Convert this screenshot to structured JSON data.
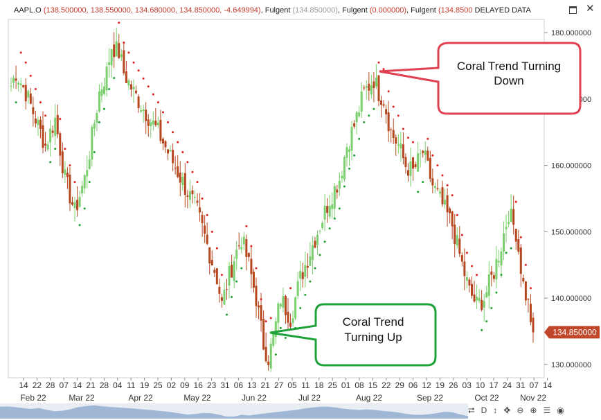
{
  "header": {
    "symbol": "AAPL.O",
    "ohlc_text": "(138.500000, 138.550000, 134.680000, 134.850000, -4.649994)",
    "ind1_name": "Fulgent",
    "ind1_values": "(134.850000)",
    "ind2_name": "Fulgent",
    "ind2_values": "(0.000000)",
    "ind3_name": "Fulgent",
    "ind3_values": "(134.8500",
    "delayed_label": "DELAYED DATA"
  },
  "colors": {
    "up": "#7ccf6e",
    "down": "#b6461e",
    "dot_up": "#1f9e2e",
    "dot_down": "#e01f1f",
    "price_tag": "#c0462a",
    "callout_red": "#e04050",
    "callout_green": "#1fa23a"
  },
  "price_tag": "134.850000",
  "callouts": {
    "down": "Coral Trend Turning Down",
    "up": "Coral Trend Turning Up"
  },
  "toolbar": {
    "d_label": "D",
    "icons": [
      "arrows-vertical-icon",
      "pan-icon",
      "zoom-out-icon",
      "zoom-in-icon",
      "list-icon",
      "palette-icon"
    ]
  },
  "chart_data": {
    "type": "candlestick",
    "indicator": "Coral Trend",
    "ylim": [
      128.0,
      182.0
    ],
    "y_ticks": [
      "130.000000",
      "140.000000",
      "150.000000",
      "160.000000",
      "170.000000",
      "180.000000"
    ],
    "x_ticks": [
      "14",
      "22",
      "28",
      "07",
      "14",
      "21",
      "28",
      "04",
      "11",
      "19",
      "25",
      "02",
      "09",
      "16",
      "23",
      "31",
      "06",
      "13",
      "21",
      "27",
      "05",
      "11",
      "18",
      "25",
      "01",
      "08",
      "15",
      "22",
      "29",
      "06",
      "12",
      "19",
      "26",
      "03",
      "10",
      "17",
      "24",
      "31",
      "07",
      "14"
    ],
    "month_labels": [
      "Feb 22",
      "Mar 22",
      "Apr 22",
      "May 22",
      "Jun 22",
      "Jul 22",
      "Aug 22",
      "Sep 22",
      "Oct 22",
      "Nov 22"
    ],
    "trend_path": [
      {
        "n": 0,
        "v": 172.0
      },
      {
        "n": 2,
        "v": 174.0
      },
      {
        "n": 6,
        "v": 171.0
      },
      {
        "n": 10,
        "v": 167.0
      },
      {
        "n": 14,
        "v": 163.0
      },
      {
        "n": 18,
        "v": 167.0
      },
      {
        "n": 22,
        "v": 158.0
      },
      {
        "n": 26,
        "v": 153.0
      },
      {
        "n": 30,
        "v": 158.0
      },
      {
        "n": 32,
        "v": 162.0
      },
      {
        "n": 36,
        "v": 171.0
      },
      {
        "n": 39,
        "v": 174.0
      },
      {
        "n": 41,
        "v": 178.0
      },
      {
        "n": 44,
        "v": 177.0
      },
      {
        "n": 46,
        "v": 174.0
      },
      {
        "n": 50,
        "v": 171.0
      },
      {
        "n": 55,
        "v": 168.0
      },
      {
        "n": 60,
        "v": 165.0
      },
      {
        "n": 64,
        "v": 162.0
      },
      {
        "n": 68,
        "v": 159.0
      },
      {
        "n": 72,
        "v": 156.0
      },
      {
        "n": 76,
        "v": 153.0
      },
      {
        "n": 80,
        "v": 148.0
      },
      {
        "n": 84,
        "v": 143.0
      },
      {
        "n": 86,
        "v": 139.0
      },
      {
        "n": 88,
        "v": 142.0
      },
      {
        "n": 91,
        "v": 146.0
      },
      {
        "n": 94,
        "v": 149.0
      },
      {
        "n": 97,
        "v": 145.0
      },
      {
        "n": 100,
        "v": 140.0
      },
      {
        "n": 103,
        "v": 133.0
      },
      {
        "n": 105,
        "v": 131.0
      },
      {
        "n": 107,
        "v": 134.0
      },
      {
        "n": 110,
        "v": 140.0
      },
      {
        "n": 114,
        "v": 137.0
      },
      {
        "n": 118,
        "v": 143.0
      },
      {
        "n": 122,
        "v": 147.0
      },
      {
        "n": 126,
        "v": 151.0
      },
      {
        "n": 130,
        "v": 155.0
      },
      {
        "n": 134,
        "v": 158.0
      },
      {
        "n": 137,
        "v": 163.0
      },
      {
        "n": 140,
        "v": 166.0
      },
      {
        "n": 144,
        "v": 171.0
      },
      {
        "n": 148,
        "v": 173.0
      },
      {
        "n": 150,
        "v": 171.0
      },
      {
        "n": 152,
        "v": 170.0
      },
      {
        "n": 155,
        "v": 165.0
      },
      {
        "n": 158,
        "v": 163.0
      },
      {
        "n": 161,
        "v": 160.0
      },
      {
        "n": 164,
        "v": 159.0
      },
      {
        "n": 168,
        "v": 162.0
      },
      {
        "n": 172,
        "v": 157.0
      },
      {
        "n": 176,
        "v": 154.0
      },
      {
        "n": 180,
        "v": 151.0
      },
      {
        "n": 184,
        "v": 145.0
      },
      {
        "n": 187,
        "v": 141.0
      },
      {
        "n": 190,
        "v": 139.0
      },
      {
        "n": 193,
        "v": 140.0
      },
      {
        "n": 197,
        "v": 144.0
      },
      {
        "n": 200,
        "v": 148.0
      },
      {
        "n": 203,
        "v": 153.0
      },
      {
        "n": 206,
        "v": 150.0
      },
      {
        "n": 209,
        "v": 142.0
      },
      {
        "n": 211,
        "v": 139.0
      },
      {
        "n": 213,
        "v": 135.0
      }
    ],
    "trend_turn_down_at": 148,
    "trend_turn_up_at": 105,
    "last_close": 134.85
  }
}
